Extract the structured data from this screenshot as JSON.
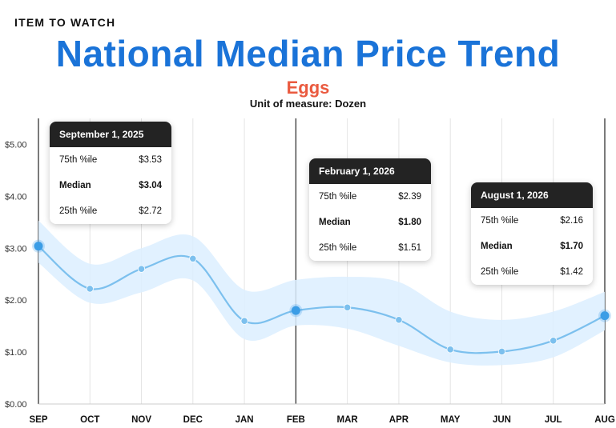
{
  "header": {
    "kicker": "ITEM TO WATCH",
    "title": "National Median Price Trend",
    "subtitle": "Eggs",
    "unit": "Unit of measure: Dozen"
  },
  "colors": {
    "title": "#1a73d8",
    "subtitle": "#ea5a3f",
    "line": "#7cc0ee",
    "band": "#dcefff",
    "point": "#7cc0ee",
    "highlight_point": "#3b9de6"
  },
  "chart_data": {
    "type": "line",
    "title": "National Median Price Trend",
    "subtitle": "Eggs",
    "categories": [
      "SEP",
      "OCT",
      "NOV",
      "DEC",
      "JAN",
      "FEB",
      "MAR",
      "APR",
      "MAY",
      "JUN",
      "JUL",
      "AUG"
    ],
    "series": [
      {
        "name": "Median",
        "values": [
          3.04,
          2.22,
          2.6,
          2.8,
          1.6,
          1.8,
          1.86,
          1.62,
          1.05,
          1.01,
          1.22,
          1.7
        ]
      },
      {
        "name": "75th %ile",
        "values": [
          3.53,
          2.7,
          3.0,
          3.23,
          2.2,
          2.39,
          2.45,
          2.35,
          1.78,
          1.62,
          1.78,
          2.16
        ]
      },
      {
        "name": "25th %ile",
        "values": [
          2.72,
          1.95,
          2.15,
          2.38,
          1.25,
          1.51,
          1.45,
          1.12,
          0.8,
          0.75,
          0.9,
          1.42
        ]
      }
    ],
    "yticks": [
      "$0.00",
      "$1.00",
      "$2.00",
      "$3.00",
      "$4.00",
      "$5.00"
    ],
    "ylim": [
      0,
      5.5
    ],
    "highlighted_indices": [
      0,
      5,
      11
    ],
    "legend": "none",
    "grid": "vertical"
  },
  "tooltips": [
    {
      "date": "September 1, 2025",
      "p75_label": "75th %ile",
      "p75": "$3.53",
      "median_label": "Median",
      "median": "$3.04",
      "p25_label": "25th %ile",
      "p25": "$2.72"
    },
    {
      "date": "February 1, 2026",
      "p75_label": "75th %ile",
      "p75": "$2.39",
      "median_label": "Median",
      "median": "$1.80",
      "p25_label": "25th %ile",
      "p25": "$1.51"
    },
    {
      "date": "August 1, 2026",
      "p75_label": "75th %ile",
      "p75": "$2.16",
      "median_label": "Median",
      "median": "$1.70",
      "p25_label": "25th %ile",
      "p25": "$1.42"
    }
  ]
}
